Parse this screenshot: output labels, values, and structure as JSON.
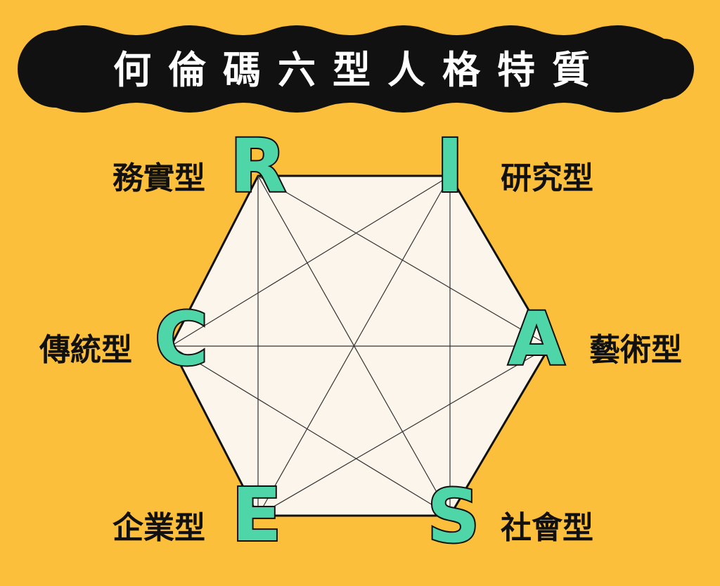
{
  "title": "何倫碼六型人格特質",
  "colors": {
    "background": "#fbbf3c",
    "banner": "#111111",
    "hexagon_fill": "#fbf5ec",
    "letter_fill": "#4fd6a8",
    "outline": "#111111"
  },
  "types": [
    {
      "code": "R",
      "label": "務實型"
    },
    {
      "code": "I",
      "label": "研究型"
    },
    {
      "code": "A",
      "label": "藝術型"
    },
    {
      "code": "S",
      "label": "社會型"
    },
    {
      "code": "E",
      "label": "企業型"
    },
    {
      "code": "C",
      "label": "傳統型"
    }
  ]
}
